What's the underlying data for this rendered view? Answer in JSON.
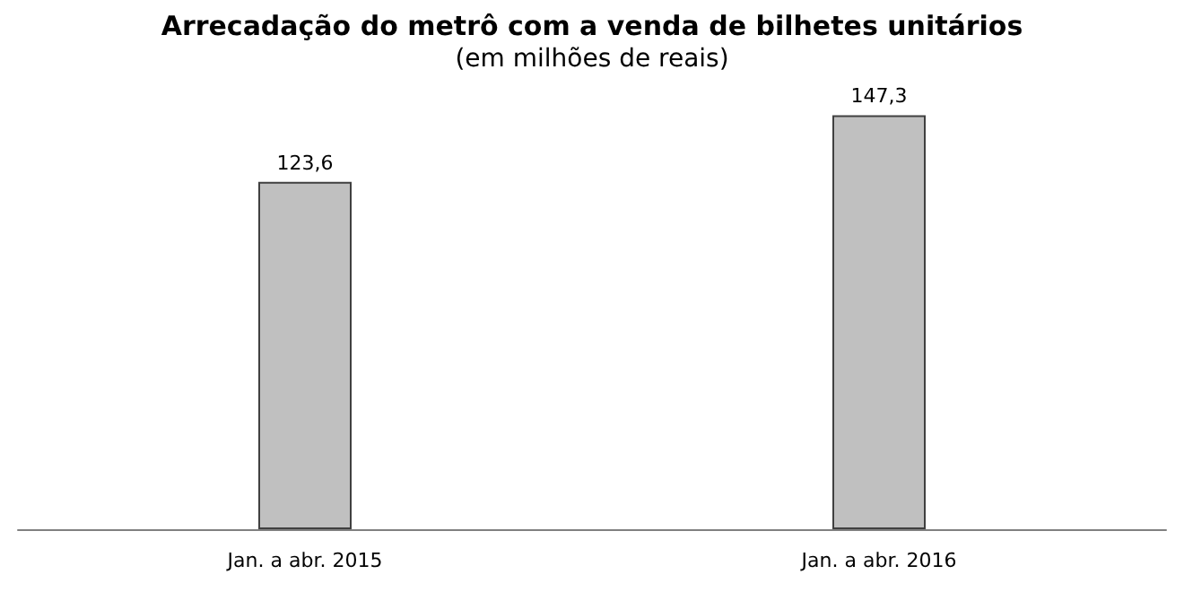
{
  "chart_data": {
    "type": "bar",
    "title": "Arrecadação do metrô com a venda de bilhetes unitários",
    "subtitle": "(em milhões de reais)",
    "categories": [
      "Jan. a abr. 2015",
      "Jan. a abr. 2016"
    ],
    "values": [
      123.6,
      147.3
    ],
    "value_labels": [
      "123,6",
      "147,3"
    ],
    "color": "#c0c0c0"
  }
}
